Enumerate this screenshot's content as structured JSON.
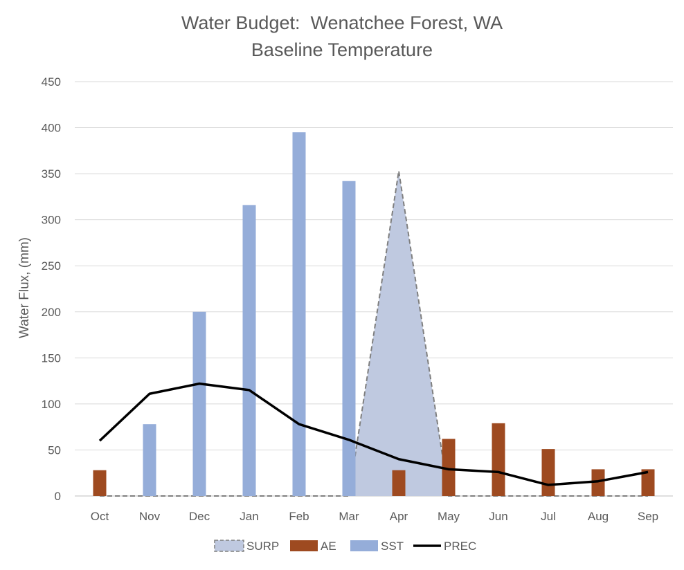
{
  "chart_data": {
    "type": "bar",
    "title": "Water Budget:  Wenatchee Forest, WA",
    "subtitle": "Baseline Temperature",
    "xlabel": "",
    "ylabel": "Water Flux, (mm)",
    "ylim": [
      0,
      450
    ],
    "yticks": [
      0,
      50,
      100,
      150,
      200,
      250,
      300,
      350,
      400,
      450
    ],
    "grid": true,
    "legend_position": "bottom",
    "categories": [
      "Oct",
      "Nov",
      "Dec",
      "Jan",
      "Feb",
      "Mar",
      "Apr",
      "May",
      "Jun",
      "Jul",
      "Aug",
      "Sep"
    ],
    "series": [
      {
        "name": "SURP",
        "kind": "area",
        "color": "#bfc9e0",
        "line_color": "#7f7f7f",
        "values": [
          0,
          0,
          0,
          0,
          0,
          0,
          353,
          0,
          0,
          0,
          0,
          0
        ]
      },
      {
        "name": "AE",
        "kind": "bar",
        "color": "#9e4a20",
        "values": [
          28,
          0,
          0,
          0,
          0,
          0,
          28,
          62,
          79,
          51,
          29,
          29
        ]
      },
      {
        "name": "SST",
        "kind": "bar",
        "color": "#95add9",
        "values": [
          0,
          78,
          200,
          316,
          395,
          342,
          0,
          0,
          0,
          0,
          0,
          0
        ]
      },
      {
        "name": "PREC",
        "kind": "line",
        "color": "#000000",
        "values": [
          60,
          111,
          122,
          115,
          78,
          61,
          40,
          29,
          26,
          12,
          16,
          26
        ]
      }
    ]
  }
}
